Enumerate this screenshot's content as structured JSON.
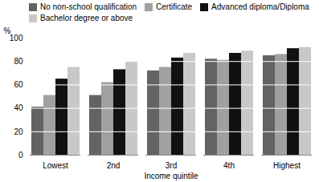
{
  "chart_data": {
    "type": "bar",
    "categories": [
      "Lowest",
      "2nd",
      "3rd",
      "4th",
      "Highest"
    ],
    "series": [
      {
        "name": "No non-school qualification",
        "color": "#636363",
        "values": [
          41,
          51,
          72,
          82,
          85
        ]
      },
      {
        "name": "Certificate",
        "color": "#a0a0a0",
        "values": [
          51,
          62,
          75,
          81,
          86
        ]
      },
      {
        "name": "Advanced diploma/Diploma",
        "color": "#111111",
        "values": [
          65,
          73,
          83,
          87,
          91
        ]
      },
      {
        "name": "Bachelor degree or above",
        "color": "#c8c8c8",
        "values": [
          75,
          80,
          87,
          89,
          92
        ]
      }
    ],
    "xlabel": "Income quintile",
    "ylabel": "%",
    "ylim": [
      0,
      100
    ],
    "yticks": [
      0,
      20,
      40,
      60,
      80,
      100
    ],
    "grid": true,
    "legend": "upper left"
  }
}
